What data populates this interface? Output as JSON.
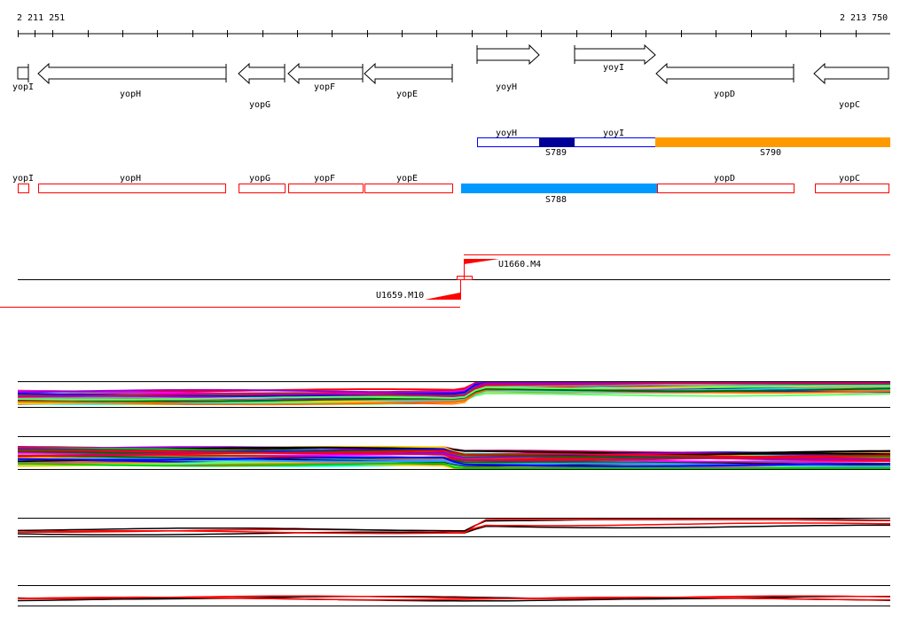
{
  "ruler": {
    "start": "2 211 251",
    "end": "2 213 750"
  },
  "genes": [
    {
      "name": "yopI",
      "strand": "-"
    },
    {
      "name": "yopH",
      "strand": "-"
    },
    {
      "name": "yopG",
      "strand": "-"
    },
    {
      "name": "yopF",
      "strand": "-"
    },
    {
      "name": "yopE",
      "strand": "-"
    },
    {
      "name": "yoyH",
      "strand": "+"
    },
    {
      "name": "yoyI",
      "strand": "+"
    },
    {
      "name": "yopD",
      "strand": "-"
    },
    {
      "name": "yopC",
      "strand": "-"
    }
  ],
  "operons_plus": {
    "genes": [
      "yoyH",
      "yoyI"
    ],
    "segments": [
      "S789",
      "S790"
    ]
  },
  "operons_minus": {
    "genes": [
      "yopI",
      "yopH",
      "yopG",
      "yopF",
      "yopE",
      "yopD",
      "yopC"
    ],
    "segments": [
      "S788"
    ]
  },
  "tss": {
    "forward": "U1660.M4",
    "reverse": "U1659.M10"
  },
  "colors": {
    "orange": "#ff9900",
    "skyblue": "#0099ff",
    "navy": "#000099",
    "red": "#ff0000"
  }
}
